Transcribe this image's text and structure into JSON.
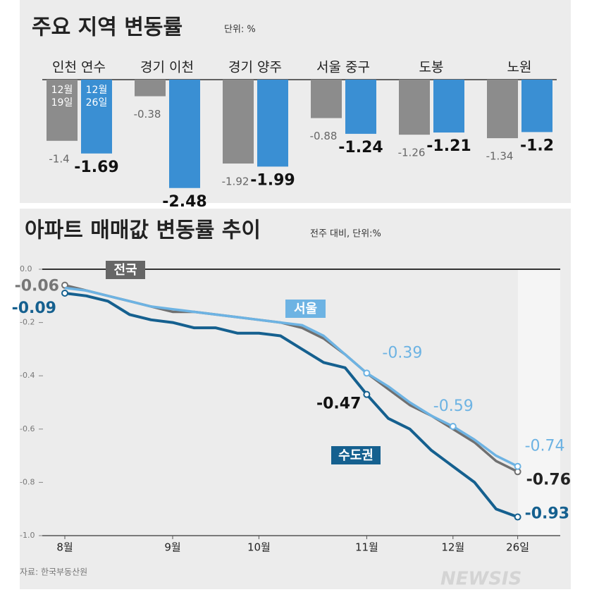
{
  "source": "자료: 한국부동산원",
  "watermark": "NEWSIS",
  "chart_data": [
    {
      "type": "bar",
      "title": "주요 지역 변동률",
      "subtitle": "단위: %",
      "categories": [
        "인천 연수",
        "경기 이천",
        "경기 양주",
        "서울 중구",
        "도봉",
        "노원"
      ],
      "series": [
        {
          "name": "12월 19일",
          "color": "#8c8c8c",
          "values": [
            -1.4,
            -0.38,
            -1.92,
            -0.88,
            -1.26,
            -1.34
          ]
        },
        {
          "name": "12월 26일",
          "color": "#3a8fd3",
          "values": [
            -1.69,
            -2.48,
            -1.99,
            -1.24,
            -1.21,
            -1.2
          ]
        }
      ]
    },
    {
      "type": "line",
      "title": "아파트 매매값 변동률 추이",
      "subtitle": "전주 대비, 단위:%",
      "categories": [
        "8월",
        null,
        null,
        null,
        null,
        "9월",
        null,
        null,
        null,
        "10월",
        null,
        null,
        null,
        null,
        "11월",
        null,
        null,
        null,
        "12월",
        null,
        null,
        "26일"
      ],
      "ylim": [
        -1.0,
        0
      ],
      "yticks": [
        {
          "value": 0,
          "label": "0.0"
        },
        -0.2,
        -0.4,
        -0.6,
        -0.8,
        {
          "value": -1.0,
          "label": "-1.0"
        }
      ],
      "series": [
        {
          "name": "전국",
          "color": "#707070",
          "values": [
            -0.06,
            -0.08,
            -0.1,
            -0.12,
            -0.14,
            -0.16,
            -0.16,
            -0.17,
            -0.18,
            -0.19,
            -0.2,
            -0.22,
            -0.26,
            -0.32,
            -0.39,
            -0.45,
            -0.51,
            -0.55,
            -0.6,
            -0.65,
            -0.72,
            -0.76
          ],
          "value_labels": [
            "-0.06",
            null,
            null,
            null,
            null,
            null,
            null,
            null,
            null,
            null,
            null,
            null,
            null,
            null,
            null,
            null,
            null,
            null,
            null,
            null,
            null,
            "-0.76"
          ]
        },
        {
          "name": "서울",
          "color": "#6db3e3",
          "values": [
            -0.07,
            -0.08,
            -0.1,
            -0.12,
            -0.14,
            -0.15,
            -0.16,
            -0.17,
            -0.18,
            -0.19,
            -0.2,
            -0.21,
            -0.25,
            -0.32,
            -0.39,
            -0.44,
            -0.5,
            -0.55,
            -0.59,
            -0.64,
            -0.7,
            -0.74
          ],
          "value_labels": [
            null,
            null,
            null,
            null,
            null,
            null,
            null,
            null,
            null,
            null,
            null,
            null,
            null,
            null,
            "-0.39",
            null,
            null,
            null,
            "-0.59",
            null,
            null,
            "-0.74"
          ]
        },
        {
          "name": "수도권",
          "color": "#15608f",
          "values": [
            -0.09,
            -0.1,
            -0.12,
            -0.17,
            -0.19,
            -0.2,
            -0.22,
            -0.22,
            -0.24,
            -0.24,
            -0.25,
            -0.3,
            -0.35,
            -0.37,
            -0.47,
            -0.56,
            -0.6,
            -0.68,
            -0.74,
            -0.8,
            -0.9,
            -0.93
          ],
          "value_labels": [
            "-0.09",
            null,
            null,
            null,
            null,
            null,
            null,
            null,
            null,
            null,
            null,
            null,
            null,
            null,
            "-0.47",
            null,
            null,
            null,
            null,
            null,
            null,
            "-0.93"
          ]
        }
      ]
    }
  ]
}
